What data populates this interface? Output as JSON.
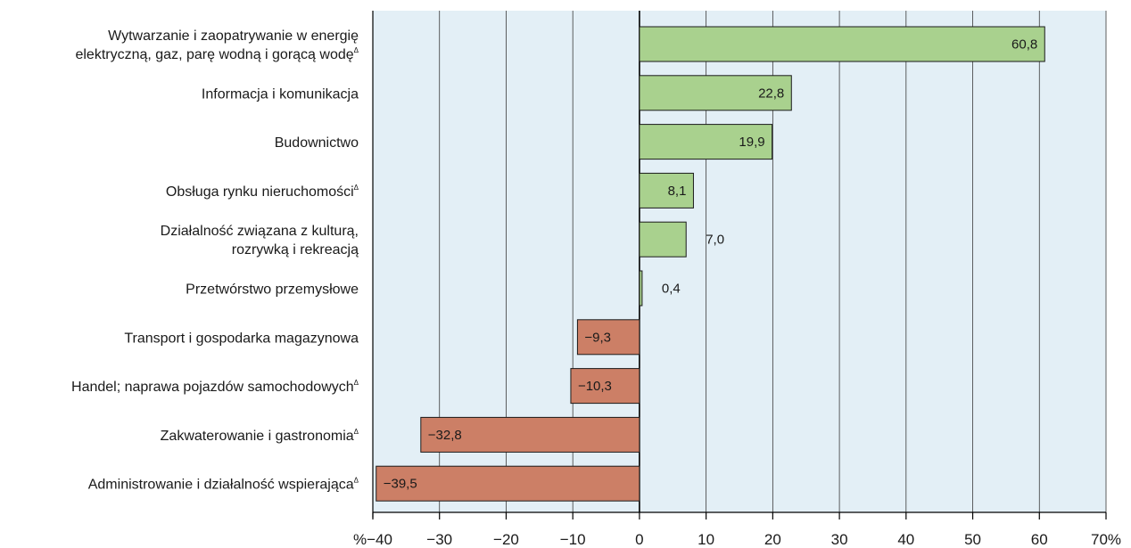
{
  "chart_data": {
    "type": "bar",
    "orientation": "horizontal",
    "categories": [
      [
        "Wytwarzanie i zaopatrywanie w energię",
        "elektryczną, gaz, parę wodną i gorącą wodę"
      ],
      [
        "Informacja i komunikacja"
      ],
      [
        "Budownictwo"
      ],
      [
        "Obsługa rynku nieruchomości"
      ],
      [
        "Działalność związana z kulturą,",
        "rozrywką i rekreacją"
      ],
      [
        "Przetwórstwo przemysłowe"
      ],
      [
        "Transport i gospodarka magazynowa"
      ],
      [
        "Handel; naprawa pojazdów samochodowych"
      ],
      [
        "Zakwaterowanie i gastronomia"
      ],
      [
        "Administrowanie i działalność wspierająca"
      ]
    ],
    "footnote_marks": [
      true,
      false,
      false,
      true,
      false,
      false,
      false,
      true,
      true,
      true
    ],
    "footnote_symbol": "Δ",
    "values": [
      60.8,
      22.8,
      19.9,
      8.1,
      7.0,
      0.4,
      -9.3,
      -10.3,
      -32.8,
      -39.5
    ],
    "value_labels": [
      "60,8",
      "22,8",
      "19,9",
      "8,1",
      "7,0",
      "0,4",
      "−9,3",
      "−10,3",
      "−32,8",
      "−39,5"
    ],
    "xlim": [
      -40,
      70
    ],
    "ticks": [
      -40,
      -30,
      -20,
      -10,
      0,
      10,
      20,
      30,
      40,
      50,
      60,
      70
    ],
    "tick_labels": [
      "%−40",
      "−30",
      "−20",
      "−10",
      "0",
      "10",
      "20",
      "30",
      "40",
      "50",
      "60",
      "70%"
    ],
    "grid": true,
    "colors": {
      "positive": "#a9d18e",
      "negative": "#cc7f66",
      "plot_bg": "#e3eff6",
      "gridline": "#3a3a3a",
      "bar_stroke": "#1a1a1a"
    }
  }
}
